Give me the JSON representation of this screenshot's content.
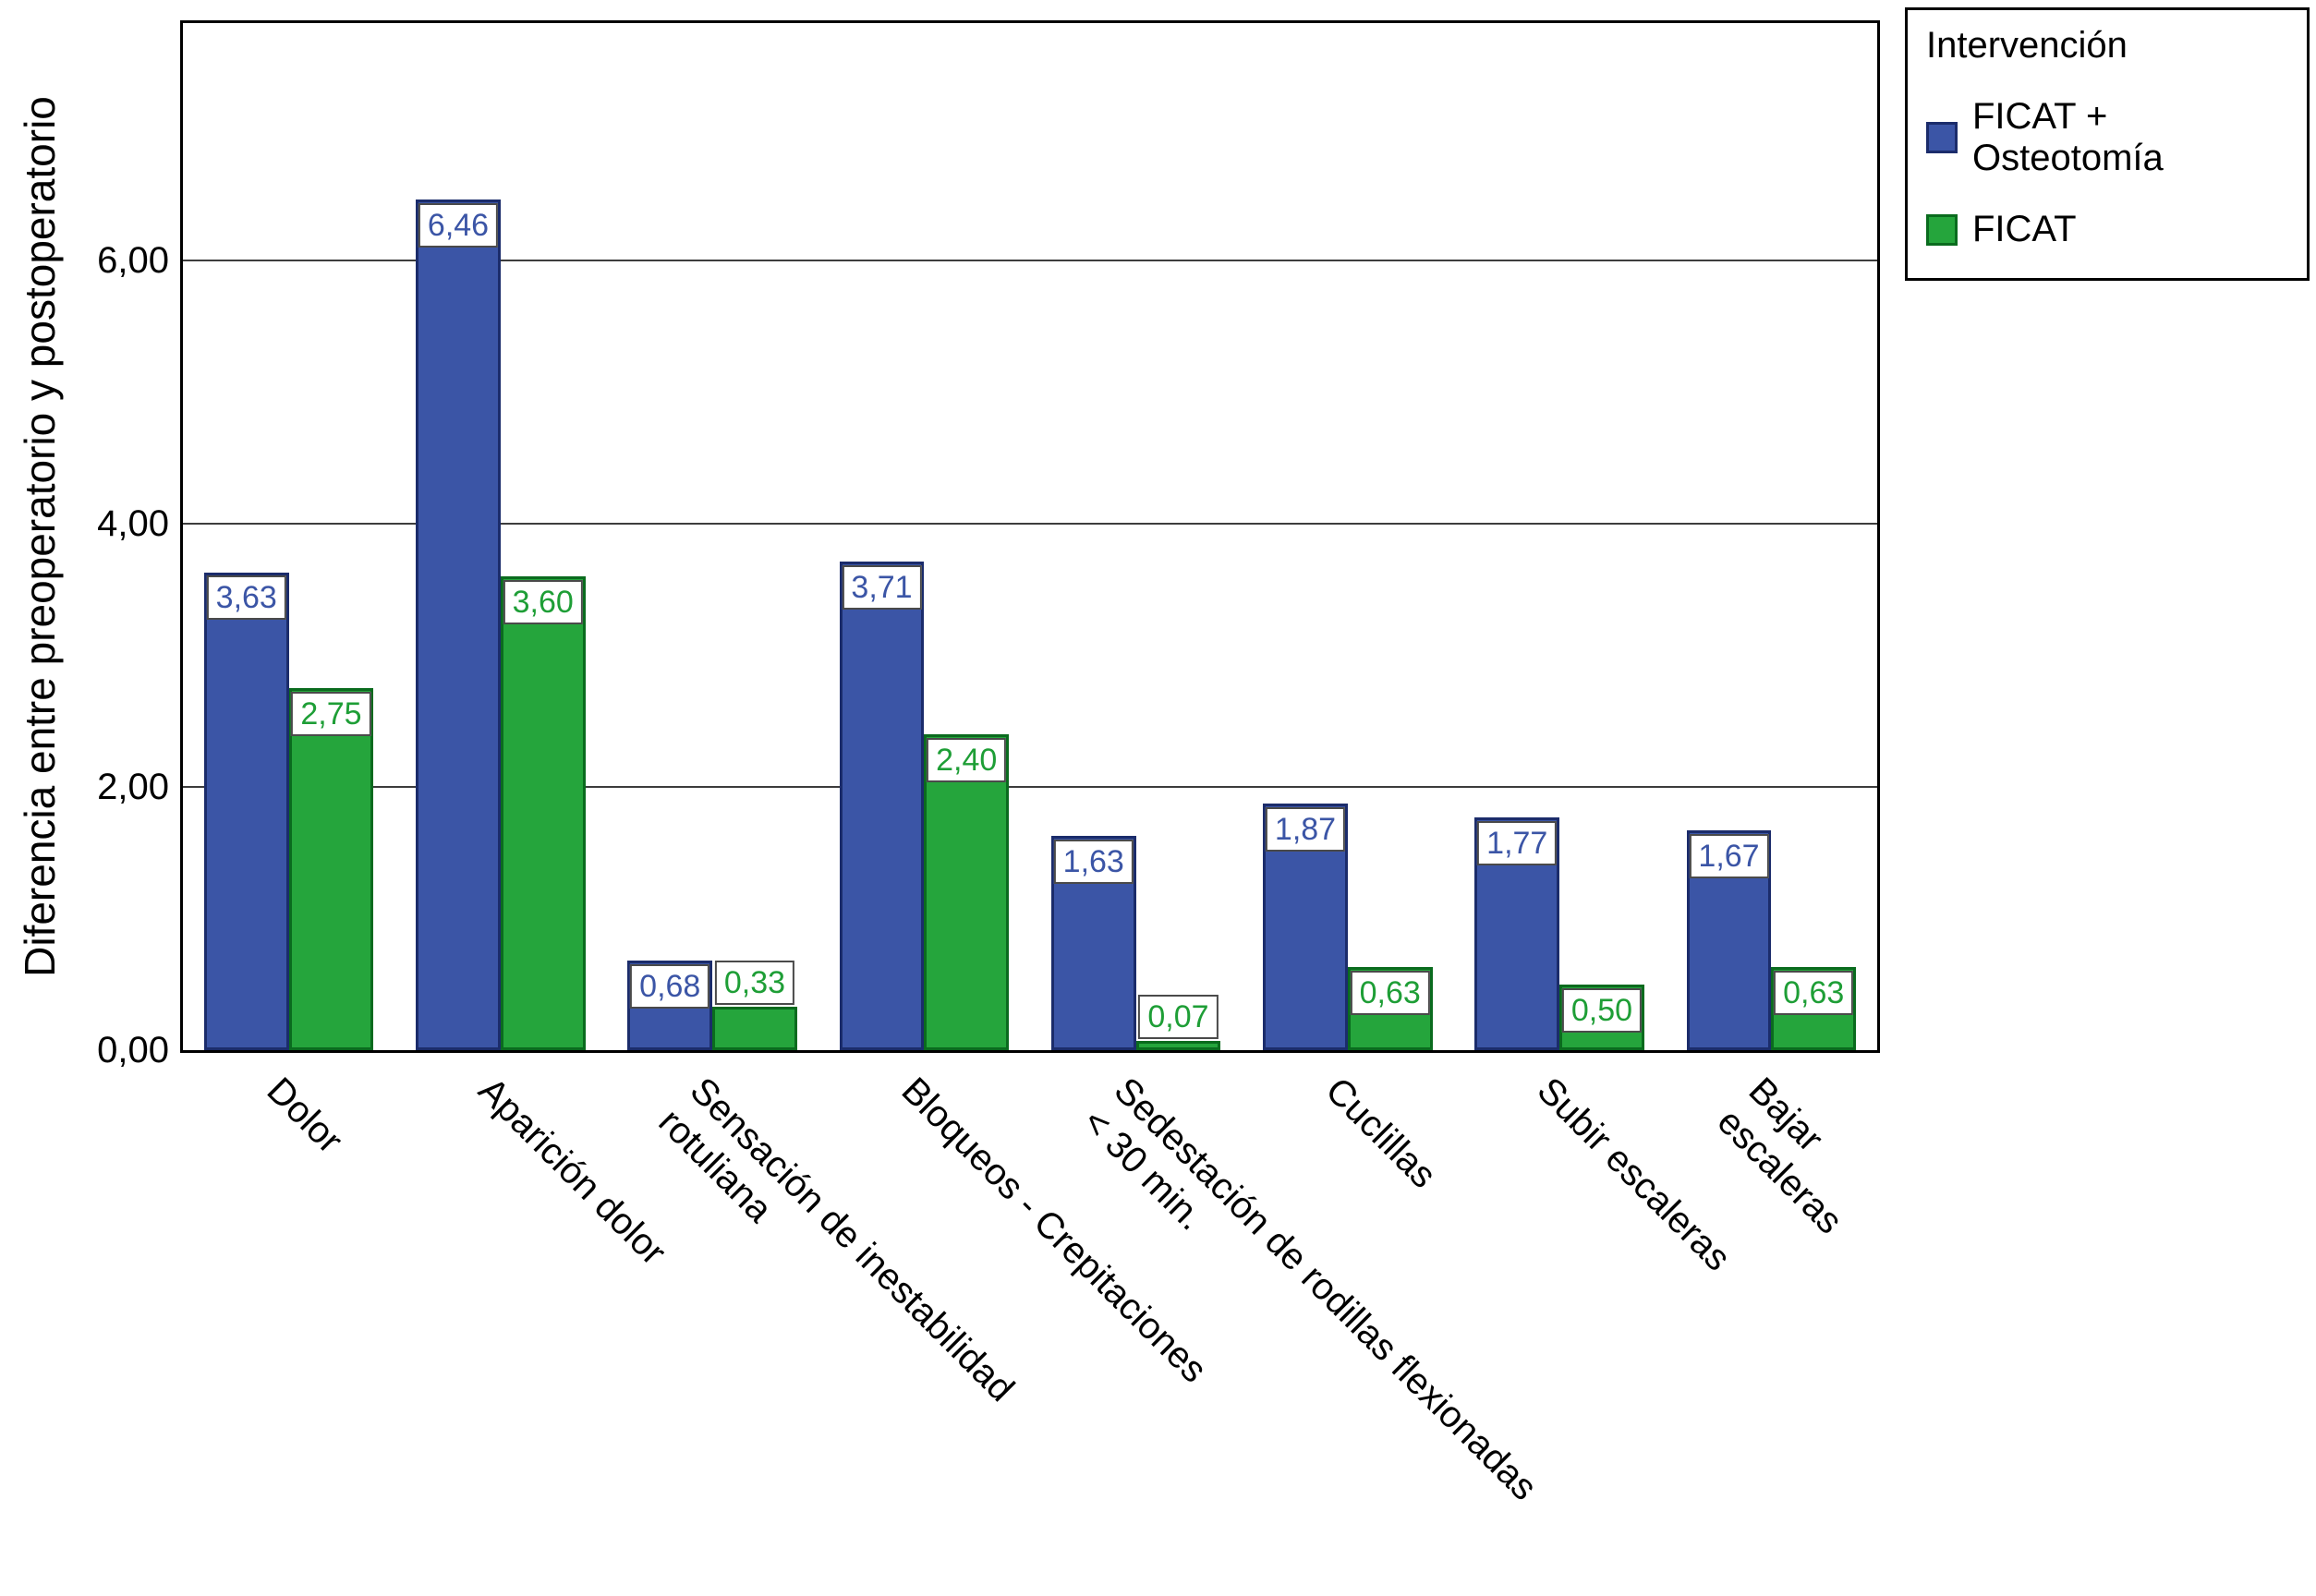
{
  "chart_data": {
    "type": "bar",
    "title": "",
    "xlabel": "",
    "ylabel": "Diferencia entre preoperatorio y postoperatorio",
    "ylim": [
      0,
      7.8
    ],
    "grid": true,
    "legend_title": "Intervención",
    "legend_position": "top-right-outside",
    "yticks": [
      {
        "value": 0,
        "label": "0,00"
      },
      {
        "value": 2,
        "label": "2,00"
      },
      {
        "value": 4,
        "label": "4,00"
      },
      {
        "value": 6,
        "label": "6,00"
      }
    ],
    "categories": [
      {
        "label": "Dolor",
        "label_lines": [
          "Dolor"
        ]
      },
      {
        "label": "Aparición dolor",
        "label_lines": [
          "Aparición dolor"
        ]
      },
      {
        "label": "Sensación de inestabilidad rotuliana",
        "label_lines": [
          "Sensación de inestabilidad",
          "rotuliana"
        ]
      },
      {
        "label": "Bloqueos - Crepitaciones",
        "label_lines": [
          "Bloqueos - Crepitaciones"
        ]
      },
      {
        "label": "Sedestación de rodillas flexionadas < 30 min.",
        "label_lines": [
          "Sedestación de rodillas flexionadas",
          "< 30 min."
        ]
      },
      {
        "label": "Cuclillas",
        "label_lines": [
          "Cuclillas"
        ]
      },
      {
        "label": "Subir escaleras",
        "label_lines": [
          "Subir escaleras"
        ]
      },
      {
        "label": "Bajar escaleras",
        "label_lines": [
          "Bajar",
          "escaleras"
        ]
      }
    ],
    "series": [
      {
        "name": "FICAT + Osteotomía",
        "color": "#3B55A6",
        "border_color": "#1B2C6B",
        "label_color": "#3B55A6",
        "values": [
          3.63,
          6.46,
          0.68,
          3.71,
          1.63,
          1.87,
          1.77,
          1.67
        ],
        "labels": [
          "3,63",
          "6,46",
          "0,68",
          "3,71",
          "1,63",
          "1,87",
          "1,77",
          "1,67"
        ]
      },
      {
        "name": "FICAT",
        "color": "#25A53C",
        "border_color": "#0A6B1E",
        "label_color": "#1E9E36",
        "values": [
          2.75,
          3.6,
          0.33,
          2.4,
          0.07,
          0.63,
          0.5,
          0.63
        ],
        "labels": [
          "2,75",
          "3,60",
          "0,33",
          "2,40",
          "0,07",
          "0,63",
          "0,50",
          "0,63"
        ]
      }
    ],
    "style": {
      "background": "#ffffff",
      "frame_color": "#000000",
      "gridline_color": "#3d3d3d",
      "label_box_border": "#4a4a4a"
    }
  }
}
